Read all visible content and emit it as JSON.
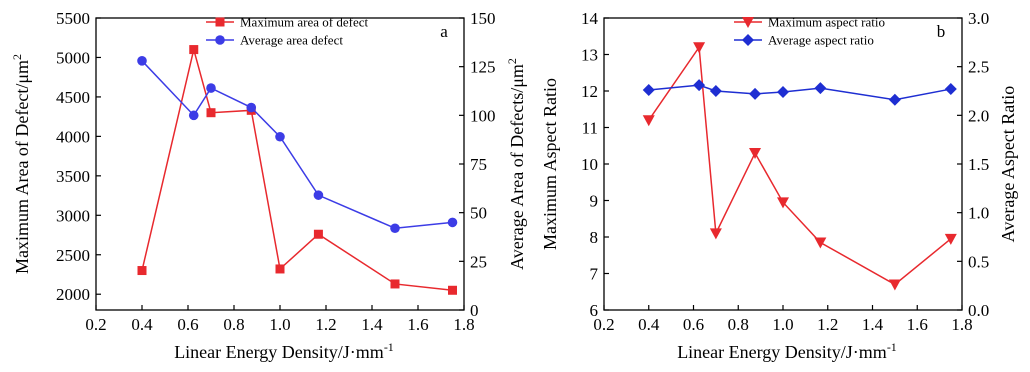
{
  "chart_data": [
    {
      "type": "line",
      "panel_label": "a",
      "xlabel": "Linear Energy Density/J·mm",
      "xlabel_sup": "-1",
      "ylabel_left": "Maximum Area of Defect/μm",
      "ylabel_left_sup": "2",
      "ylabel_right": "Average Area of Defects/μm",
      "ylabel_right_sup": "2",
      "xlim": [
        0.2,
        1.8
      ],
      "xticks": [
        "0.2",
        "0.4",
        "0.6",
        "0.8",
        "1.0",
        "1.2",
        "1.4",
        "1.6",
        "1.8"
      ],
      "ylim_left": [
        1800,
        5500
      ],
      "yticks_left": [
        "2000",
        "2500",
        "3000",
        "3500",
        "4000",
        "4500",
        "5000",
        "5500"
      ],
      "ylim_right": [
        0,
        150
      ],
      "yticks_right": [
        "0",
        "25",
        "50",
        "75",
        "100",
        "125",
        "150"
      ],
      "legend_position": "top-right",
      "grid": false,
      "series": [
        {
          "name": "Maximum area of defect",
          "axis": "left",
          "color": "#e8292e",
          "marker": "square",
          "x": [
            0.4,
            0.625,
            0.7,
            0.875,
            1.0,
            1.167,
            1.5,
            1.75
          ],
          "y": [
            2300,
            5100,
            4300,
            4330,
            2320,
            2760,
            2130,
            2050
          ]
        },
        {
          "name": "Average area defect",
          "axis": "right",
          "color": "#3c3ce6",
          "marker": "circle",
          "x": [
            0.4,
            0.625,
            0.7,
            0.875,
            1.0,
            1.167,
            1.5,
            1.75
          ],
          "y": [
            128,
            100,
            114,
            104,
            89,
            59,
            42,
            45
          ]
        }
      ]
    },
    {
      "type": "line",
      "panel_label": "b",
      "xlabel": "Linear Energy Density/J·mm",
      "xlabel_sup": "-1",
      "ylabel_left": "Maximum Aspect Ratio",
      "ylabel_right": "Average Aspect Ratio",
      "xlim": [
        0.2,
        1.8
      ],
      "xticks": [
        "0.2",
        "0.4",
        "0.6",
        "0.8",
        "1.0",
        "1.2",
        "1.4",
        "1.6",
        "1.8"
      ],
      "ylim_left": [
        6,
        14
      ],
      "yticks_left": [
        "6",
        "7",
        "8",
        "9",
        "10",
        "11",
        "12",
        "13",
        "14"
      ],
      "ylim_right": [
        0,
        3
      ],
      "yticks_right": [
        "0.0",
        "0.5",
        "1.0",
        "1.5",
        "2.0",
        "2.5",
        "3.0"
      ],
      "legend_position": "top-right",
      "grid": false,
      "series": [
        {
          "name": "Maximum aspect ratio",
          "axis": "left",
          "color": "#e8292e",
          "marker": "triangle-down",
          "x": [
            0.4,
            0.625,
            0.7,
            0.875,
            1.0,
            1.167,
            1.5,
            1.75
          ],
          "y": [
            11.2,
            13.2,
            8.1,
            10.3,
            8.95,
            7.85,
            6.7,
            7.95
          ]
        },
        {
          "name": "Average aspect ratio",
          "axis": "right",
          "color": "#1e2ed2",
          "marker": "diamond",
          "x": [
            0.4,
            0.625,
            0.7,
            0.875,
            1.0,
            1.167,
            1.5,
            1.75
          ],
          "y": [
            2.26,
            2.31,
            2.25,
            2.22,
            2.24,
            2.28,
            2.16,
            2.27
          ]
        }
      ]
    }
  ]
}
